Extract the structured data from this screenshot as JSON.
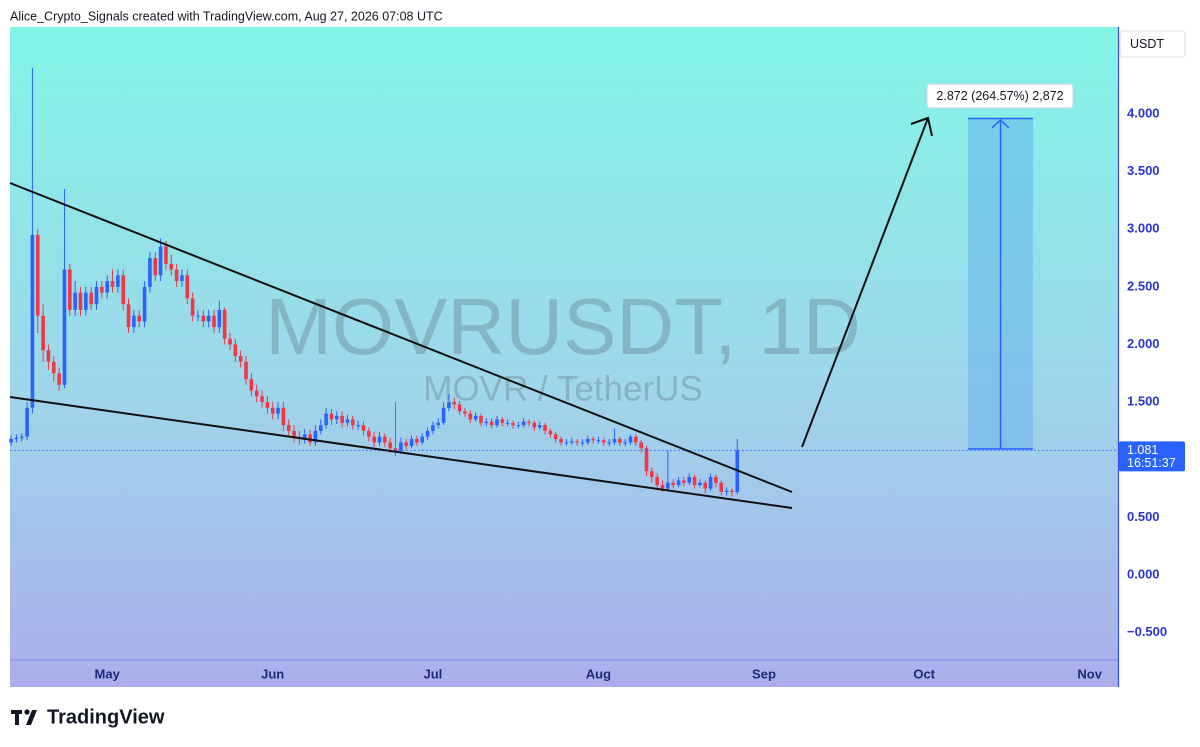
{
  "attribution": "Alice_Crypto_Signals created with TradingView.com, Aug 27, 2026 07:08 UTC",
  "brand": "TradingView",
  "chart_data": {
    "type": "candlestick",
    "title": "MOVRUSDT, 1D",
    "subtitle": "MOVR / TetherUS",
    "currency": "USDT",
    "countdown": "16:51:37",
    "measure_label": "2.872 (264.57%) 2,872",
    "up_color": "#2962ff",
    "down_color": "#f23645",
    "grid": false,
    "x": [
      104,
      105,
      106,
      107,
      108,
      109,
      110,
      111,
      112,
      113,
      114,
      115,
      116,
      117,
      118,
      119,
      120,
      121,
      122,
      123,
      124,
      125,
      126,
      127,
      128,
      129,
      130,
      131,
      132,
      133,
      134,
      135,
      136,
      137,
      138,
      139,
      140,
      141,
      142,
      143,
      144,
      145,
      146,
      147,
      148,
      149,
      150,
      151,
      152,
      153,
      154,
      155,
      156,
      157,
      158,
      159,
      160,
      161,
      162,
      163,
      164,
      165,
      166,
      167,
      168,
      169,
      170,
      171,
      172,
      173,
      174,
      175,
      176,
      177,
      178,
      179,
      180,
      181,
      182,
      183,
      184,
      185,
      186,
      187,
      188,
      189,
      190,
      191,
      192,
      193,
      194,
      195,
      196,
      197,
      198,
      199,
      200,
      201,
      202,
      203,
      204,
      205,
      206,
      207,
      208,
      209,
      210,
      211,
      212,
      213,
      214,
      215,
      216,
      217,
      218,
      219,
      220,
      221,
      222,
      223,
      224,
      225,
      226,
      227,
      228,
      229,
      230,
      231,
      232,
      233,
      234,
      235,
      236,
      237,
      238,
      239,
      240
    ],
    "open": [
      1.15,
      1.18,
      1.19,
      1.2,
      1.45,
      2.95,
      2.25,
      1.95,
      1.85,
      1.75,
      1.65,
      2.65,
      2.3,
      2.45,
      2.3,
      2.45,
      2.35,
      2.5,
      2.45,
      2.55,
      2.5,
      2.6,
      2.35,
      2.15,
      2.25,
      2.2,
      2.5,
      2.75,
      2.6,
      2.85,
      2.7,
      2.65,
      2.55,
      2.6,
      2.4,
      2.25,
      2.25,
      2.2,
      2.25,
      2.15,
      2.3,
      2.05,
      2.0,
      1.9,
      1.85,
      1.7,
      1.6,
      1.55,
      1.5,
      1.45,
      1.4,
      1.45,
      1.3,
      1.25,
      1.2,
      1.18,
      1.22,
      1.15,
      1.25,
      1.3,
      1.4,
      1.35,
      1.38,
      1.32,
      1.35,
      1.3,
      1.3,
      1.25,
      1.2,
      1.15,
      1.2,
      1.15,
      1.1,
      1.08,
      1.15,
      1.12,
      1.18,
      1.15,
      1.2,
      1.25,
      1.3,
      1.32,
      1.45,
      1.5,
      1.48,
      1.42,
      1.4,
      1.35,
      1.38,
      1.32,
      1.33,
      1.3,
      1.35,
      1.32,
      1.32,
      1.3,
      1.3,
      1.33,
      1.32,
      1.28,
      1.3,
      1.25,
      1.22,
      1.18,
      1.15,
      1.15,
      1.16,
      1.15,
      1.15,
      1.18,
      1.17,
      1.17,
      1.15,
      1.15,
      1.18,
      1.15,
      1.15,
      1.2,
      1.15,
      1.1,
      0.9,
      0.85,
      0.78,
      0.75,
      0.8,
      0.78,
      0.82,
      0.8,
      0.85,
      0.78,
      0.8,
      0.75,
      0.85,
      0.8,
      0.72,
      0.73,
      0.72
    ],
    "high": [
      1.21,
      1.22,
      1.23,
      1.5,
      4.4,
      3.0,
      2.35,
      2.0,
      1.9,
      1.8,
      3.35,
      2.7,
      2.55,
      2.5,
      2.5,
      2.5,
      2.55,
      2.55,
      2.6,
      2.65,
      2.65,
      2.65,
      2.4,
      2.3,
      2.3,
      2.55,
      2.8,
      2.8,
      2.92,
      2.9,
      2.78,
      2.7,
      2.65,
      2.65,
      2.45,
      2.3,
      2.3,
      2.3,
      2.3,
      2.38,
      2.32,
      2.1,
      2.05,
      1.95,
      1.9,
      1.75,
      1.65,
      1.6,
      1.55,
      1.5,
      1.5,
      1.5,
      1.35,
      1.3,
      1.25,
      1.27,
      1.26,
      1.3,
      1.35,
      1.45,
      1.44,
      1.42,
      1.42,
      1.39,
      1.38,
      1.34,
      1.33,
      1.28,
      1.24,
      1.24,
      1.23,
      1.19,
      1.5,
      1.19,
      1.18,
      1.21,
      1.21,
      1.23,
      1.28,
      1.33,
      1.36,
      1.5,
      1.57,
      1.54,
      1.51,
      1.45,
      1.43,
      1.41,
      1.4,
      1.36,
      1.36,
      1.38,
      1.37,
      1.35,
      1.34,
      1.33,
      1.36,
      1.35,
      1.34,
      1.33,
      1.32,
      1.27,
      1.24,
      1.2,
      1.18,
      1.19,
      1.18,
      1.18,
      1.21,
      1.2,
      1.2,
      1.19,
      1.18,
      1.27,
      1.2,
      1.18,
      1.22,
      1.22,
      1.17,
      1.12,
      0.93,
      0.88,
      0.82,
      1.08,
      0.83,
      0.85,
      0.85,
      0.88,
      0.87,
      0.83,
      0.82,
      0.88,
      0.87,
      0.82,
      0.76,
      0.75,
      1.18
    ],
    "low": [
      1.12,
      1.15,
      1.16,
      1.17,
      1.4,
      2.1,
      1.85,
      1.78,
      1.68,
      1.6,
      1.62,
      2.25,
      2.25,
      2.25,
      2.25,
      2.3,
      2.3,
      2.4,
      2.4,
      2.45,
      2.45,
      2.3,
      2.1,
      2.1,
      2.15,
      2.15,
      2.45,
      2.55,
      2.55,
      2.65,
      2.6,
      2.5,
      2.5,
      2.35,
      2.2,
      2.2,
      2.15,
      2.15,
      2.1,
      2.1,
      2.0,
      1.95,
      1.85,
      1.8,
      1.65,
      1.55,
      1.5,
      1.45,
      1.4,
      1.35,
      1.35,
      1.25,
      1.2,
      1.15,
      1.13,
      1.14,
      1.12,
      1.12,
      1.22,
      1.27,
      1.3,
      1.31,
      1.28,
      1.29,
      1.26,
      1.26,
      1.21,
      1.16,
      1.11,
      1.12,
      1.11,
      1.06,
      1.03,
      1.05,
      1.09,
      1.1,
      1.12,
      1.13,
      1.17,
      1.22,
      1.27,
      1.3,
      1.42,
      1.44,
      1.39,
      1.37,
      1.32,
      1.33,
      1.29,
      1.29,
      1.27,
      1.28,
      1.29,
      1.29,
      1.27,
      1.27,
      1.28,
      1.29,
      1.25,
      1.26,
      1.22,
      1.19,
      1.15,
      1.12,
      1.12,
      1.13,
      1.12,
      1.12,
      1.13,
      1.14,
      1.14,
      1.12,
      1.12,
      1.13,
      1.12,
      1.12,
      1.13,
      1.12,
      1.06,
      0.86,
      0.8,
      0.74,
      0.72,
      0.73,
      0.75,
      0.76,
      0.77,
      0.78,
      0.75,
      0.76,
      0.71,
      0.73,
      0.76,
      0.69,
      0.69,
      0.68,
      0.7
    ],
    "close": [
      1.18,
      1.19,
      1.2,
      1.45,
      2.95,
      2.25,
      1.95,
      1.85,
      1.75,
      1.65,
      2.65,
      2.3,
      2.45,
      2.3,
      2.45,
      2.35,
      2.5,
      2.45,
      2.55,
      2.5,
      2.6,
      2.35,
      2.15,
      2.25,
      2.2,
      2.5,
      2.75,
      2.6,
      2.85,
      2.7,
      2.65,
      2.55,
      2.6,
      2.4,
      2.25,
      2.25,
      2.2,
      2.25,
      2.15,
      2.3,
      2.05,
      2.0,
      1.9,
      1.85,
      1.7,
      1.6,
      1.55,
      1.5,
      1.45,
      1.4,
      1.45,
      1.3,
      1.25,
      1.2,
      1.18,
      1.22,
      1.15,
      1.25,
      1.3,
      1.4,
      1.35,
      1.38,
      1.32,
      1.35,
      1.3,
      1.3,
      1.25,
      1.2,
      1.15,
      1.2,
      1.15,
      1.1,
      1.08,
      1.15,
      1.12,
      1.18,
      1.15,
      1.2,
      1.25,
      1.3,
      1.32,
      1.45,
      1.5,
      1.48,
      1.42,
      1.4,
      1.35,
      1.38,
      1.32,
      1.33,
      1.3,
      1.35,
      1.32,
      1.32,
      1.3,
      1.3,
      1.33,
      1.32,
      1.28,
      1.3,
      1.25,
      1.22,
      1.18,
      1.15,
      1.15,
      1.16,
      1.15,
      1.15,
      1.18,
      1.17,
      1.17,
      1.15,
      1.15,
      1.18,
      1.15,
      1.15,
      1.2,
      1.15,
      1.1,
      0.9,
      0.85,
      0.78,
      0.75,
      0.8,
      0.78,
      0.82,
      0.8,
      0.85,
      0.78,
      0.8,
      0.75,
      0.85,
      0.8,
      0.72,
      0.73,
      0.72,
      1.081
    ],
    "xlim": [
      103.8,
      311.3
    ],
    "xticks": [
      {
        "value": 122,
        "label": "May"
      },
      {
        "value": 153,
        "label": "Jun"
      },
      {
        "value": 183,
        "label": "Jul"
      },
      {
        "value": 214,
        "label": "Aug"
      },
      {
        "value": 245,
        "label": "Sep"
      },
      {
        "value": 275,
        "label": "Oct"
      },
      {
        "value": 306,
        "label": "Nov"
      }
    ],
    "ylim": [
      -0.738,
      4.755
    ],
    "yticks": [
      {
        "value": -0.5,
        "label": "−0.500"
      },
      {
        "value": 0,
        "label": "0.000"
      },
      {
        "value": 0.5,
        "label": "0.500"
      },
      {
        "value": 1.5,
        "label": "1.500"
      },
      {
        "value": 2,
        "label": "2.000"
      },
      {
        "value": 2.5,
        "label": "2.500"
      },
      {
        "value": 3,
        "label": "3.000"
      },
      {
        "value": 3.5,
        "label": "3.500"
      },
      {
        "value": 4,
        "label": "4.000"
      }
    ]
  }
}
